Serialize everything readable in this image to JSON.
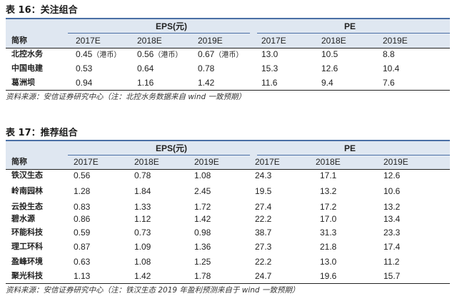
{
  "table16": {
    "title": "表 16：关注组合",
    "group_eps": "EPS(元)",
    "group_pe": "PE",
    "col_name": "简称",
    "years": [
      "2017E",
      "2018E",
      "2019E",
      "2017E",
      "2018E",
      "2019E"
    ],
    "rows": [
      {
        "name": "北控水务",
        "eps": [
          "0.45",
          "0.56",
          "0.67"
        ],
        "eps_note": "（港币）",
        "pe": [
          "13.0",
          "10.5",
          "8.8"
        ]
      },
      {
        "name": "中国电建",
        "eps": [
          "0.53",
          "0.64",
          "0.78"
        ],
        "eps_note": "",
        "pe": [
          "15.3",
          "12.6",
          "10.4"
        ]
      },
      {
        "name": "葛洲坝",
        "eps": [
          "0.94",
          "1.16",
          "1.42"
        ],
        "eps_note": "",
        "pe": [
          "11.6",
          "9.4",
          "7.6"
        ]
      }
    ],
    "source": "资料来源：安信证券研究中心（注：北控水务数据来自 wind 一致预期）"
  },
  "table17": {
    "title": "表 17：推荐组合",
    "group_eps": "EPS(元)",
    "group_pe": "PE",
    "col_name": "简称",
    "years": [
      "2017E",
      "2018E",
      "2019E",
      "2017E",
      "2018E",
      "2019E"
    ],
    "rows": [
      {
        "name": "铁汉生态",
        "eps": [
          "0.56",
          "0.78",
          "1.08"
        ],
        "pe": [
          "24.3",
          "17.1",
          "12.6"
        ]
      },
      {
        "name": "岭南园林",
        "eps": [
          "1.28",
          "1.84",
          "2.45"
        ],
        "pe": [
          "19.5",
          "13.2",
          "10.6"
        ]
      },
      {
        "name": "云投生态",
        "eps": [
          "0.83",
          "1.33",
          "1.72"
        ],
        "pe": [
          "27.4",
          "17.2",
          "13.2"
        ]
      },
      {
        "name": "碧水源",
        "eps": [
          "0.86",
          "1.12",
          "1.42"
        ],
        "pe": [
          "22.2",
          "17.0",
          "13.4"
        ]
      },
      {
        "name": "环能科技",
        "eps": [
          "0.59",
          "0.73",
          "0.98"
        ],
        "pe": [
          "38.7",
          "31.3",
          "23.3"
        ]
      },
      {
        "name": "理工环科",
        "eps": [
          "0.87",
          "1.09",
          "1.36"
        ],
        "pe": [
          "27.3",
          "21.8",
          "17.4"
        ]
      },
      {
        "name": "盈峰环境",
        "eps": [
          "0.63",
          "1.08",
          "1.25"
        ],
        "pe": [
          "22.2",
          "13.0",
          "11.2"
        ]
      },
      {
        "name": "聚光科技",
        "eps": [
          "1.13",
          "1.42",
          "1.78"
        ],
        "pe": [
          "24.7",
          "19.6",
          "15.7"
        ]
      }
    ],
    "source": "资料来源：安信证券研究中心（注：铁汉生态 2019 年盈利预测来自于 wind 一致预期）"
  }
}
